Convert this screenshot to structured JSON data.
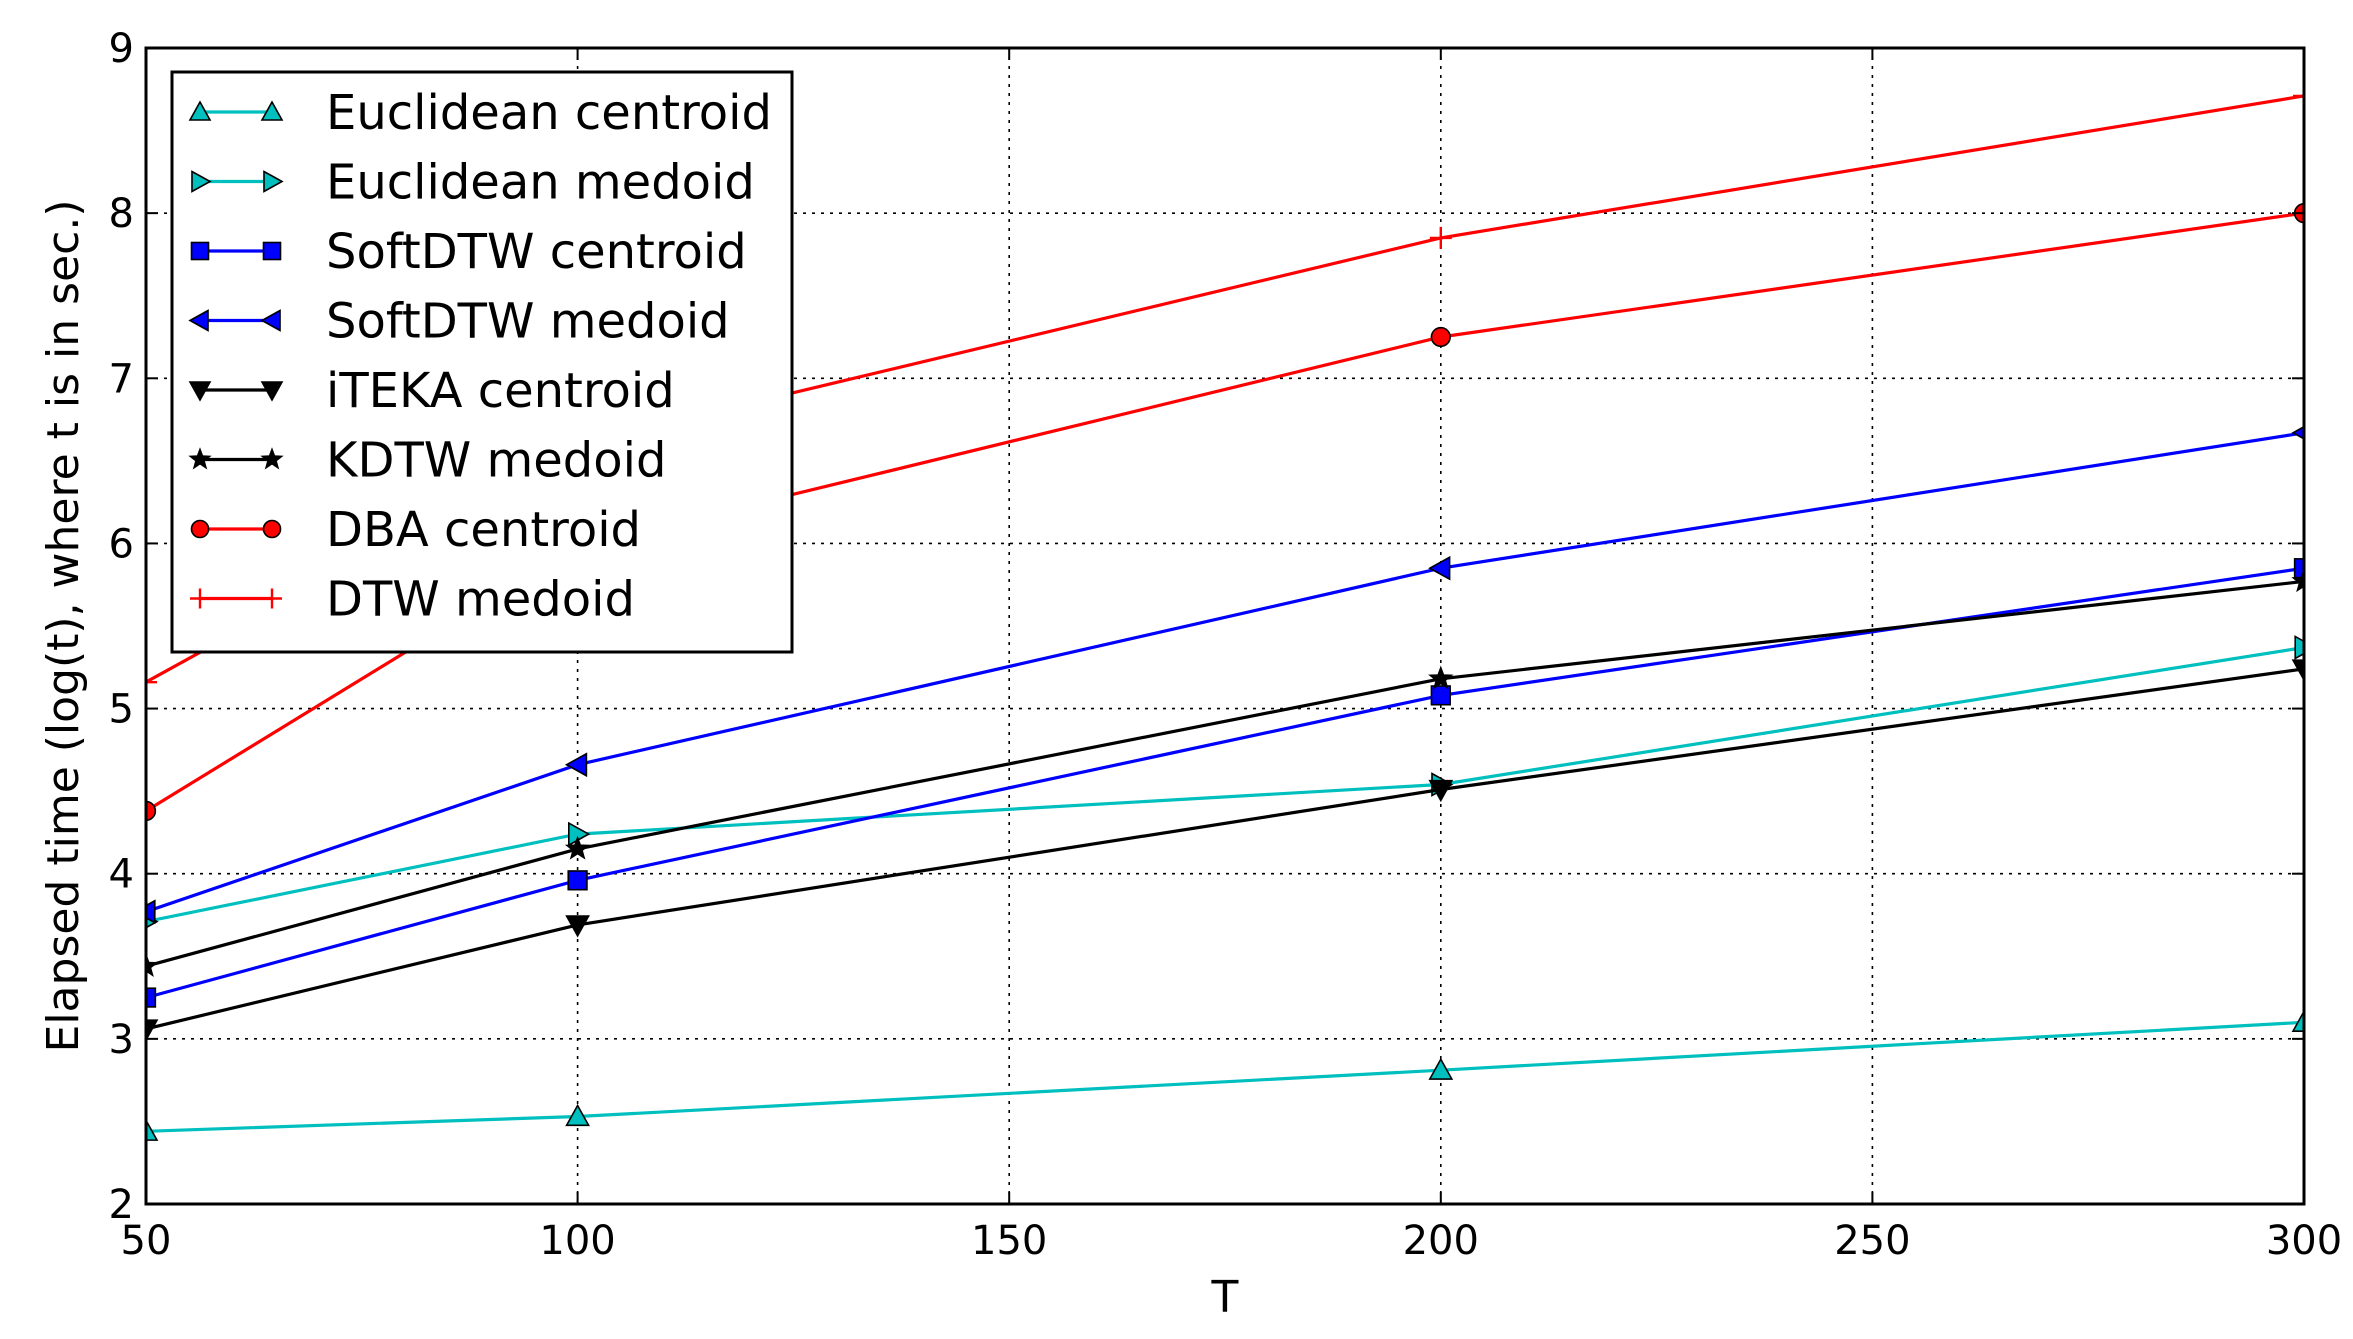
{
  "chart_data": {
    "type": "line",
    "xlabel": "T",
    "ylabel": "Elapsed time (log(t), where t is in sec.)",
    "x": [
      50,
      100,
      200,
      300
    ],
    "xlim": [
      50,
      300
    ],
    "ylim": [
      2,
      9
    ],
    "xticks": [
      "50",
      "100",
      "150",
      "200",
      "250",
      "300"
    ],
    "yticks": [
      "2",
      "3",
      "4",
      "5",
      "6",
      "7",
      "8",
      "9"
    ],
    "grid": true,
    "legend_position": "upper-left",
    "series": [
      {
        "name": "Euclidean centroid",
        "color": "#00bfbf",
        "marker": "triangle-up",
        "values": [
          2.44,
          2.53,
          2.81,
          3.1
        ]
      },
      {
        "name": "Euclidean medoid",
        "color": "#00bfbf",
        "marker": "triangle-right",
        "values": [
          3.71,
          4.24,
          4.54,
          5.37
        ]
      },
      {
        "name": "SoftDTW centroid",
        "color": "#0000ff",
        "marker": "square",
        "values": [
          3.25,
          3.96,
          5.08,
          5.85
        ]
      },
      {
        "name": "SoftDTW medoid",
        "color": "#0000ff",
        "marker": "triangle-left",
        "values": [
          3.77,
          4.66,
          5.85,
          6.67
        ]
      },
      {
        "name": "iTEKA centroid",
        "color": "#000000",
        "marker": "triangle-down",
        "values": [
          3.06,
          3.69,
          4.51,
          5.24
        ]
      },
      {
        "name": "KDTW medoid",
        "color": "#000000",
        "marker": "star",
        "values": [
          3.44,
          4.15,
          5.18,
          5.77
        ]
      },
      {
        "name": "DBA centroid",
        "color": "#ff0000",
        "marker": "circle",
        "values": [
          4.38,
          5.98,
          7.25,
          8.0
        ]
      },
      {
        "name": "DTW medoid",
        "color": "#ff0000",
        "marker": "plus",
        "values": [
          5.16,
          6.6,
          7.85,
          8.71
        ]
      }
    ]
  }
}
